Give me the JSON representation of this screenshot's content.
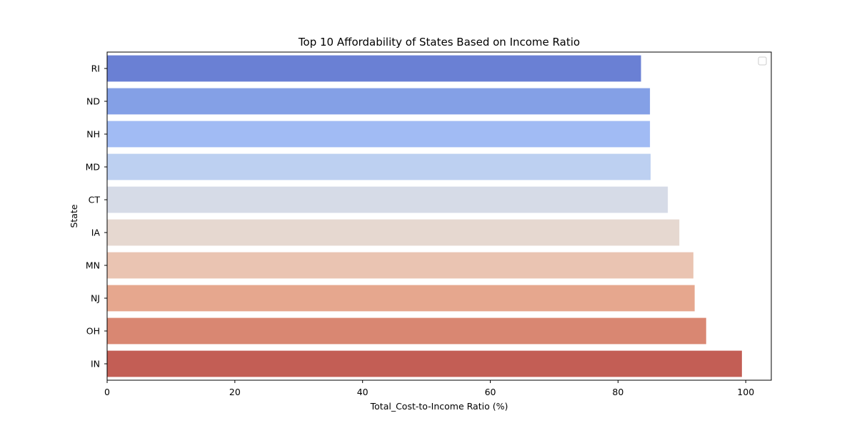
{
  "chart_data": {
    "type": "bar",
    "orientation": "horizontal",
    "title": "Top 10 Affordability of States Based on Income Ratio",
    "xlabel": "Total_Cost-to-Income Ratio (%)",
    "ylabel": "State",
    "categories": [
      "RI",
      "ND",
      "NH",
      "MD",
      "CT",
      "IA",
      "MN",
      "NJ",
      "OH",
      "IN"
    ],
    "values": [
      83.6,
      85.0,
      85.0,
      85.1,
      87.8,
      89.6,
      91.8,
      92.0,
      93.8,
      99.4
    ],
    "colors": [
      "#6a80d4",
      "#84a0e6",
      "#a1bbf4",
      "#bdd0f1",
      "#d6dbe7",
      "#e6d8d0",
      "#eac4b2",
      "#e6a78e",
      "#d98772",
      "#c35e55"
    ],
    "xlim": [
      0,
      104
    ],
    "xticks": [
      0,
      20,
      40,
      60,
      80,
      100
    ],
    "grid": false,
    "legend": {
      "position": "top-right",
      "entries": []
    }
  }
}
